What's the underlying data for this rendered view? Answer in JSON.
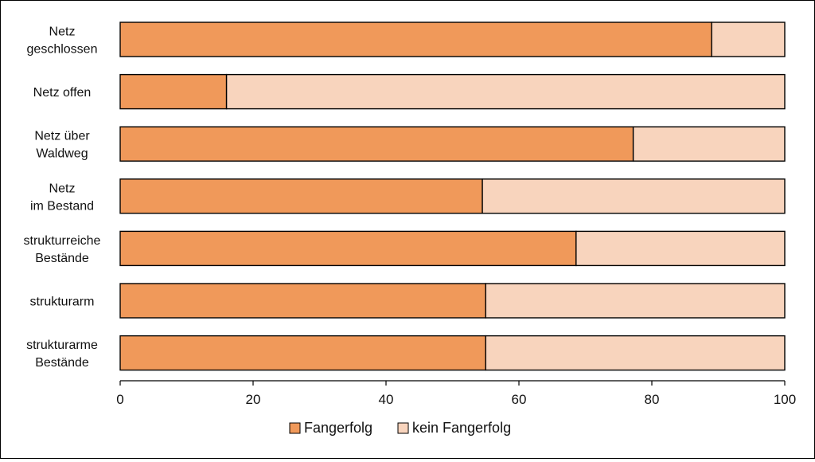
{
  "chart_data": {
    "type": "bar",
    "orientation": "horizontal",
    "stacked": true,
    "categories": [
      [
        "Netz",
        "geschlossen"
      ],
      [
        "Netz offen"
      ],
      [
        "Netz über",
        "Waldweg"
      ],
      [
        "Netz",
        "im Bestand"
      ],
      [
        "strukturreiche",
        "Bestände"
      ],
      [
        "strukturarm"
      ],
      [
        "strukturarme",
        "Bestände"
      ]
    ],
    "series": [
      {
        "name": "Fangerfolg",
        "color": "#f0995a",
        "values": [
          89,
          16,
          77.2,
          54.5,
          68.6,
          55,
          55
        ]
      },
      {
        "name": "kein Fangerfolg",
        "color": "#f8d4bd",
        "values": [
          11,
          84,
          22.8,
          45.5,
          31.4,
          45,
          45
        ]
      }
    ],
    "xlim": [
      0,
      100
    ],
    "xticks": [
      0,
      20,
      40,
      60,
      80,
      100
    ],
    "xlabel": "",
    "ylabel": "",
    "title": "",
    "grid": false,
    "legend_position": "bottom-center"
  }
}
